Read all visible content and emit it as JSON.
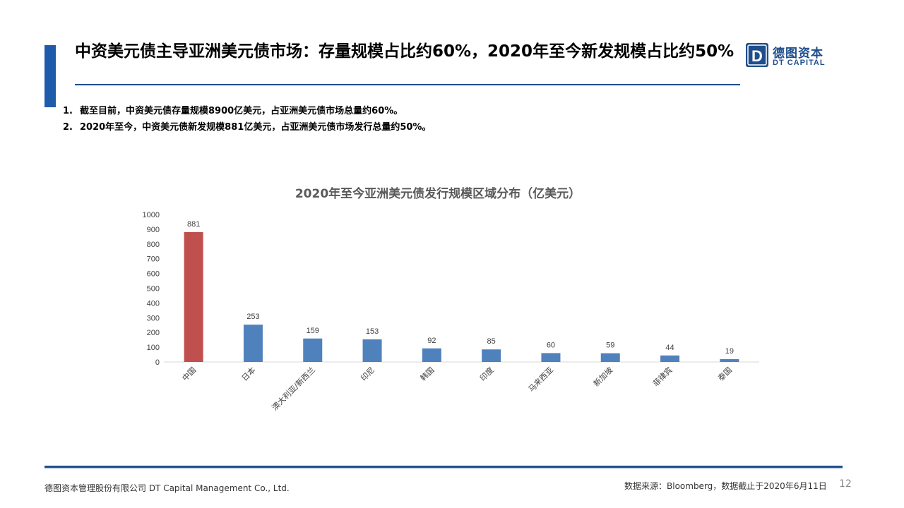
{
  "header": {
    "title": "中资美元债主导亚洲美元债市场：存量规模占比约60%，2020年至今新发规模占比约50%"
  },
  "logo": {
    "mark_letter": "D",
    "name_cn": "德图资本",
    "name_en": "DT CAPITAL"
  },
  "bullets": [
    {
      "num": "1.",
      "text": "截至目前，中资美元债存量规模8900亿美元，占亚洲美元债市场总量约60%。"
    },
    {
      "num": "2.",
      "text": "2020年至今，中资美元债新发规模881亿美元，占亚洲美元债市场发行总量约50%。"
    }
  ],
  "chart_data": {
    "type": "bar",
    "title": "2020年至今亚洲美元债发行规模区域分布（亿美元）",
    "categories": [
      "中国",
      "日本",
      "澳大利亚/新西兰",
      "印尼",
      "韩国",
      "印度",
      "马来西亚",
      "新加坡",
      "菲律宾",
      "泰国"
    ],
    "values": [
      881,
      253,
      159,
      153,
      92,
      85,
      60,
      59,
      44,
      19
    ],
    "ylim": [
      0,
      1000
    ],
    "yticks": [
      0,
      100,
      200,
      300,
      400,
      500,
      600,
      700,
      800,
      900,
      1000
    ],
    "xlabel": "",
    "ylabel": "",
    "grid": false,
    "colors": {
      "highlight": "#c0504d",
      "default": "#4f81bd"
    },
    "highlight_index": 0
  },
  "footer": {
    "company": "德图资本管理股份有限公司  DT Capital Management  Co., Ltd.",
    "source": "数据来源：Bloomberg，数据截止于2020年6月11日",
    "page": "12"
  }
}
